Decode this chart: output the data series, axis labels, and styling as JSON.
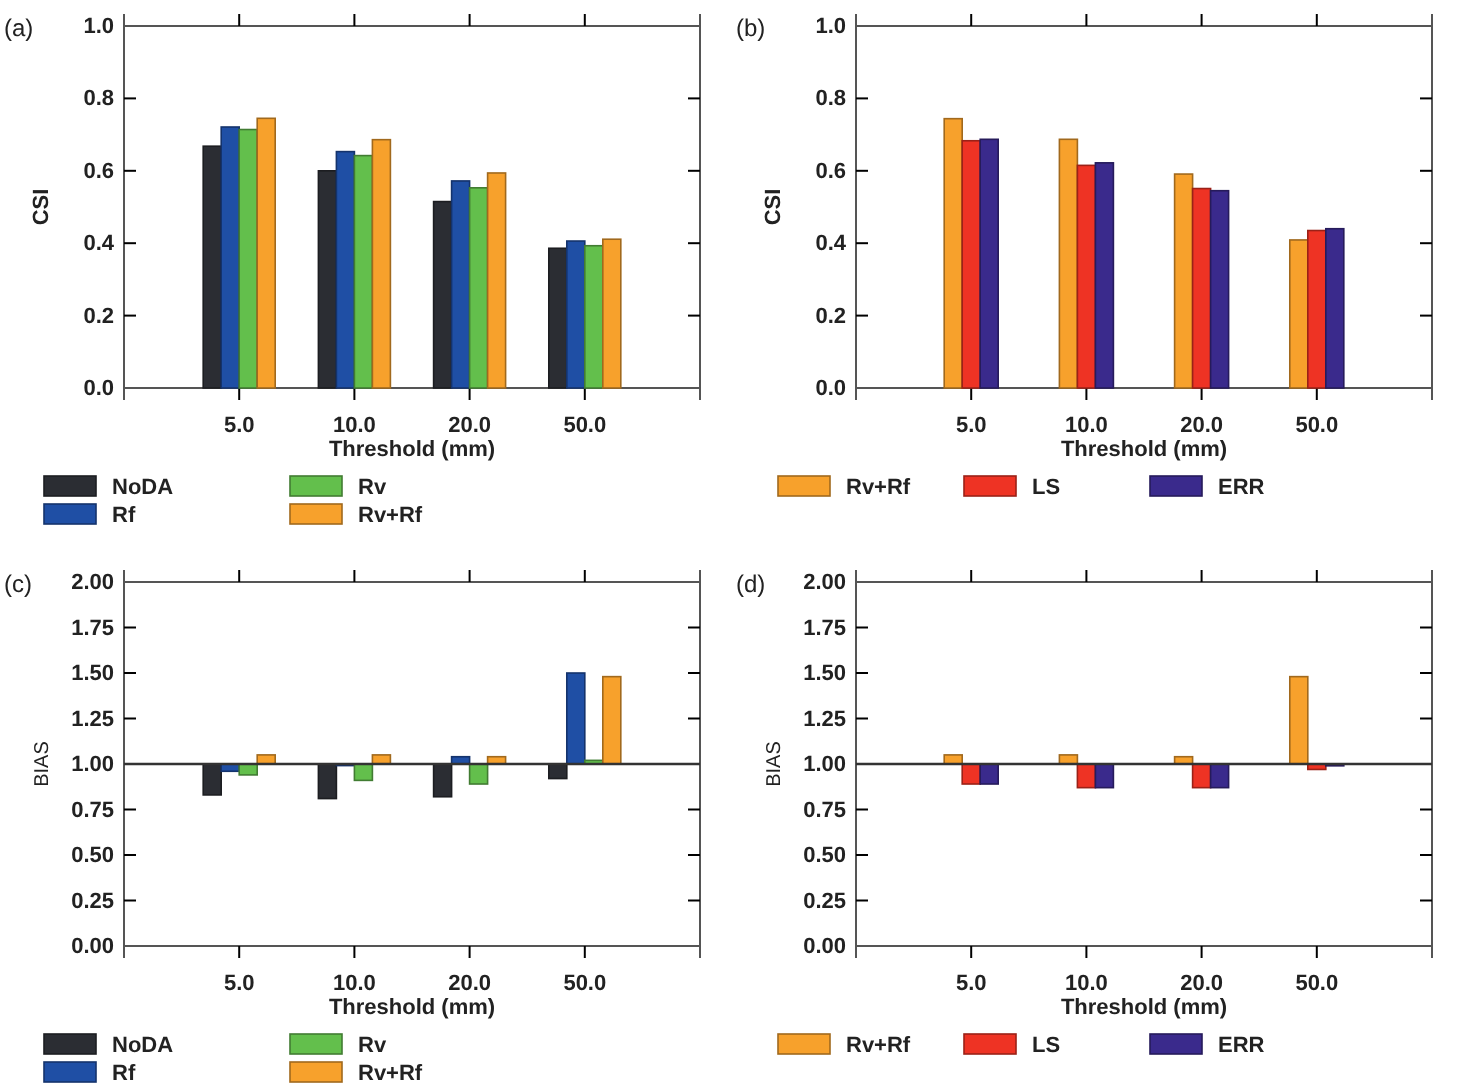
{
  "chart_data": [
    {
      "type": "bar",
      "title": "(a)",
      "xlabel": "Threshold (mm)",
      "ylabel": "CSI",
      "categories": [
        "5.0",
        "10.0",
        "20.0",
        "50.0"
      ],
      "series": [
        {
          "name": "NoDA",
          "color": "#2b2d33",
          "values": [
            0.668,
            0.6,
            0.515,
            0.386
          ]
        },
        {
          "name": "Rf",
          "color": "#1f4fa5",
          "values": [
            0.721,
            0.653,
            0.572,
            0.406
          ]
        },
        {
          "name": "Rv",
          "color": "#63bf4c",
          "values": [
            0.714,
            0.642,
            0.553,
            0.393
          ]
        },
        {
          "name": "Rv+Rf",
          "color": "#f7a12c",
          "values": [
            0.745,
            0.686,
            0.594,
            0.411
          ]
        }
      ],
      "ylim": [
        0,
        1
      ],
      "yticks": [
        {
          "value": 0,
          "label": "0.0"
        },
        {
          "value": 0.2,
          "label": "0.2"
        },
        {
          "value": 0.4,
          "label": "0.4"
        },
        {
          "value": 0.6,
          "label": "0.6"
        },
        {
          "value": 0.8,
          "label": "0.8"
        },
        {
          "value": 1,
          "label": "1.0"
        }
      ],
      "grid": false,
      "legend": "bottom"
    },
    {
      "type": "bar",
      "title": "(b)",
      "xlabel": "Threshold (mm)",
      "ylabel": "CSI",
      "categories": [
        "5.0",
        "10.0",
        "20.0",
        "50.0"
      ],
      "series": [
        {
          "name": "Rv+Rf",
          "color": "#f7a12c",
          "values": [
            0.744,
            0.687,
            0.591,
            0.409
          ]
        },
        {
          "name": "LS",
          "color": "#ee3324",
          "values": [
            0.683,
            0.615,
            0.551,
            0.435
          ]
        },
        {
          "name": "ERR",
          "color": "#3a2a8c",
          "values": [
            0.687,
            0.622,
            0.545,
            0.44
          ]
        }
      ],
      "ylim": [
        0,
        1
      ],
      "yticks": [
        {
          "value": 0,
          "label": "0.0"
        },
        {
          "value": 0.2,
          "label": "0.2"
        },
        {
          "value": 0.4,
          "label": "0.4"
        },
        {
          "value": 0.6,
          "label": "0.6"
        },
        {
          "value": 0.8,
          "label": "0.8"
        },
        {
          "value": 1,
          "label": "1.0"
        }
      ],
      "grid": false,
      "legend": "bottom"
    },
    {
      "type": "bar",
      "title": "(c)",
      "xlabel": "Threshold (mm)",
      "ylabel": "BIAS",
      "categories": [
        "5.0",
        "10.0",
        "20.0",
        "50.0"
      ],
      "series": [
        {
          "name": "NoDA",
          "color": "#2b2d33",
          "base": [
            1,
            1,
            1,
            1
          ],
          "values": [
            -0.17,
            -0.19,
            -0.18,
            -0.08
          ]
        },
        {
          "name": "Rf",
          "color": "#1f4fa5",
          "base": [
            1,
            1,
            1,
            1
          ],
          "values": [
            -0.04,
            0.0,
            0.04,
            0.5
          ]
        },
        {
          "name": "Rv",
          "color": "#63bf4c",
          "base": [
            1,
            1,
            1,
            1
          ],
          "values": [
            -0.06,
            -0.09,
            -0.11,
            0.02
          ]
        },
        {
          "name": "Rv+Rf",
          "color": "#f7a12c",
          "base": [
            1,
            1,
            1,
            1
          ],
          "values": [
            0.05,
            0.05,
            0.04,
            0.48
          ]
        }
      ],
      "ref_lines": [
        {
          "axis": "y",
          "value": 1,
          "color": "#333333"
        }
      ],
      "ylim": [
        0,
        2
      ],
      "yticks": [
        {
          "value": 0,
          "label": "0.00"
        },
        {
          "value": 0.25,
          "label": "0.25"
        },
        {
          "value": 0.5,
          "label": "0.50"
        },
        {
          "value": 0.75,
          "label": "0.75"
        },
        {
          "value": 1,
          "label": "1.00"
        },
        {
          "value": 1.25,
          "label": "1.25"
        },
        {
          "value": 1.5,
          "label": "1.50"
        },
        {
          "value": 1.75,
          "label": "1.75"
        },
        {
          "value": 2,
          "label": "2.00"
        }
      ],
      "grid": false,
      "legend": "bottom"
    },
    {
      "type": "bar",
      "title": "(d)",
      "xlabel": "Threshold (mm)",
      "ylabel": "BIAS",
      "categories": [
        "5.0",
        "10.0",
        "20.0",
        "50.0"
      ],
      "series": [
        {
          "name": "Rv+Rf",
          "color": "#f7a12c",
          "base": [
            1,
            1,
            1,
            1
          ],
          "values": [
            0.05,
            0.05,
            0.04,
            0.48
          ]
        },
        {
          "name": "LS",
          "color": "#ee3324",
          "base": [
            1,
            1,
            1,
            1
          ],
          "values": [
            -0.11,
            -0.13,
            -0.13,
            -0.03
          ]
        },
        {
          "name": "ERR",
          "color": "#3a2a8c",
          "base": [
            1,
            1,
            1,
            1
          ],
          "values": [
            -0.11,
            -0.13,
            -0.13,
            -0.01
          ]
        }
      ],
      "ref_lines": [
        {
          "axis": "y",
          "value": 1,
          "color": "#333333"
        }
      ],
      "ylim": [
        0,
        2
      ],
      "yticks": [
        {
          "value": 0,
          "label": "0.00"
        },
        {
          "value": 0.25,
          "label": "0.25"
        },
        {
          "value": 0.5,
          "label": "0.50"
        },
        {
          "value": 0.75,
          "label": "0.75"
        },
        {
          "value": 1,
          "label": "1.00"
        },
        {
          "value": 1.25,
          "label": "1.25"
        },
        {
          "value": 1.5,
          "label": "1.50"
        },
        {
          "value": 1.75,
          "label": "1.75"
        },
        {
          "value": 2,
          "label": "2.00"
        }
      ],
      "grid": false,
      "legend": "bottom"
    }
  ]
}
